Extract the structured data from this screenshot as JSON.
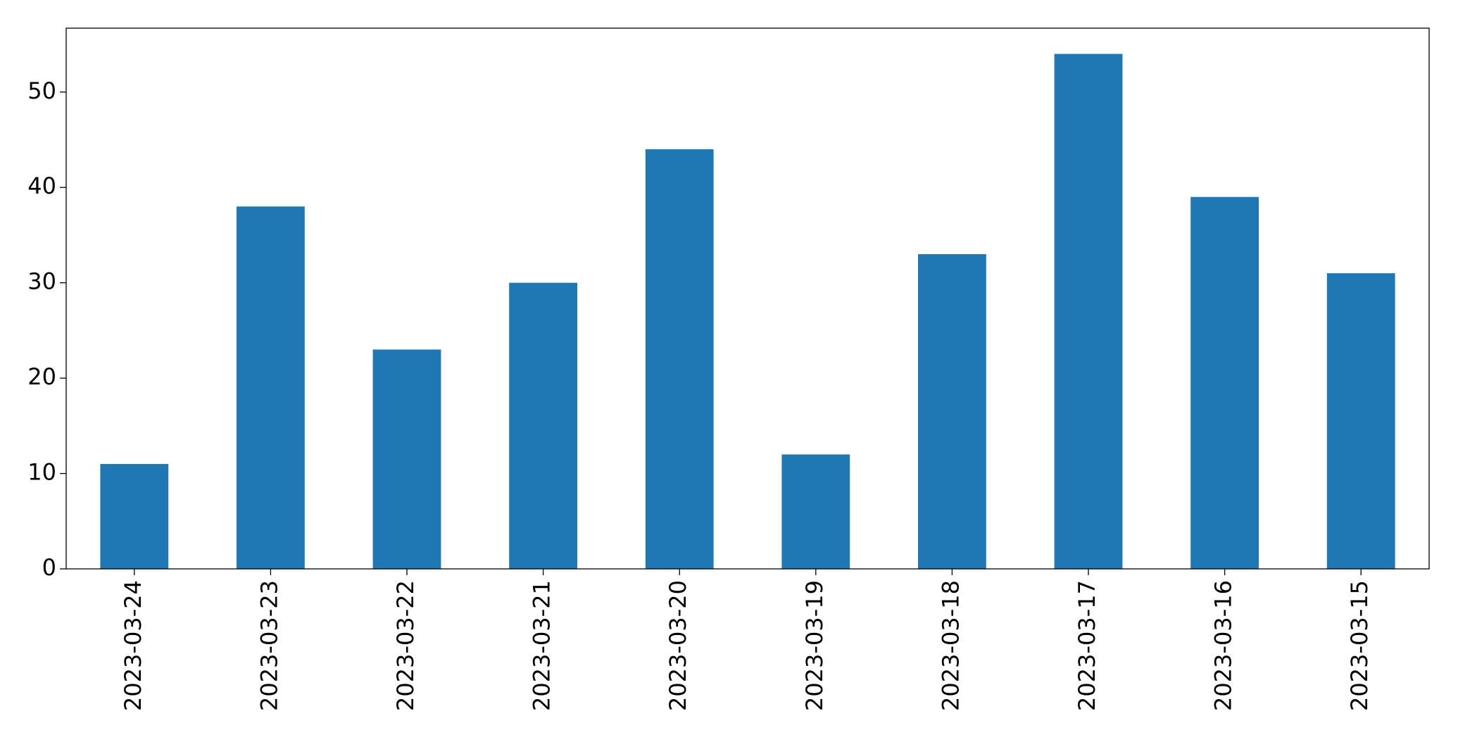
{
  "chart_data": {
    "type": "bar",
    "categories": [
      "2023-03-24",
      "2023-03-23",
      "2023-03-22",
      "2023-03-21",
      "2023-03-20",
      "2023-03-19",
      "2023-03-18",
      "2023-03-17",
      "2023-03-16",
      "2023-03-15"
    ],
    "values": [
      11,
      38,
      23,
      30,
      44,
      12,
      33,
      54,
      39,
      31
    ],
    "color": "#1f77b4",
    "ylim": [
      0,
      56.7
    ],
    "yticks": [
      0,
      10,
      20,
      30,
      40,
      50
    ],
    "grid": false
  }
}
